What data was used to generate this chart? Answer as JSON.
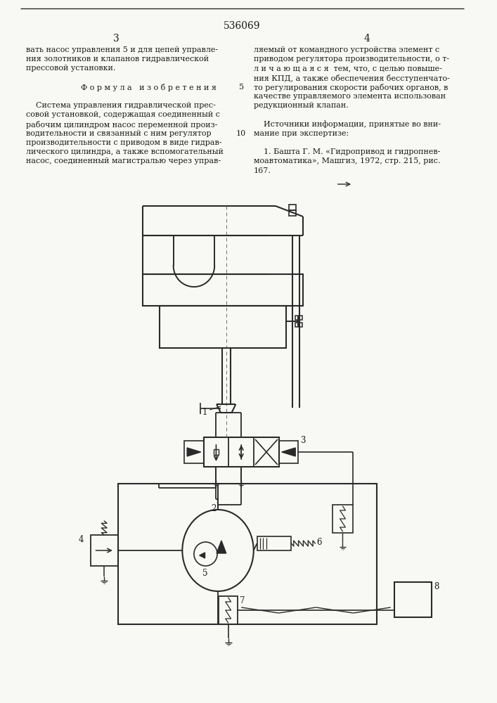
{
  "patent_number": "536069",
  "page_left": "3",
  "page_right": "4",
  "bg_color": "#f8f8f5",
  "line_color": "#2a2a2a",
  "text_color": "#1a1a1a",
  "left_col_text": [
    "вать насос управления 5 и для цепей управле-",
    "ния золотников и клапанов гидравлической",
    "прессовой установки.",
    "",
    "Ф о р м у л а   и з о б р е т е н и я",
    "",
    "    Система управления гидравлической прес-",
    "совой установкой, содержащая соединенный с",
    "рабочим цилиндром насос переменной произ-",
    "водительности и связанный с ним регулятор",
    "производительности с приводом в виде гидрав-",
    "лического цилиндра, а также вспомогательный",
    "насос, соединенный магистралью через управ-"
  ],
  "right_col_text": [
    "ляемый от командного устройства элемент с",
    "приводом регулятора производительности, о т-",
    "л и ч а ю щ а я с я  тем, что, с целью повыше-",
    "ния КПД, а также обеспечения бесступенчато-",
    "то регулирования скорости рабочих органов, в",
    "качестве управляемого элемента использован",
    "редукционный клапан.",
    "",
    "    Источники информации, принятые во вни-",
    "мание при экспертизе:",
    "",
    "    1. Башта Г. М. «Гидропривод и гидропнев-",
    "моавтоматика», Машгиз, 1972, стр. 215, рис.",
    "167."
  ],
  "figsize": [
    7.07,
    10.0
  ],
  "dpi": 100
}
